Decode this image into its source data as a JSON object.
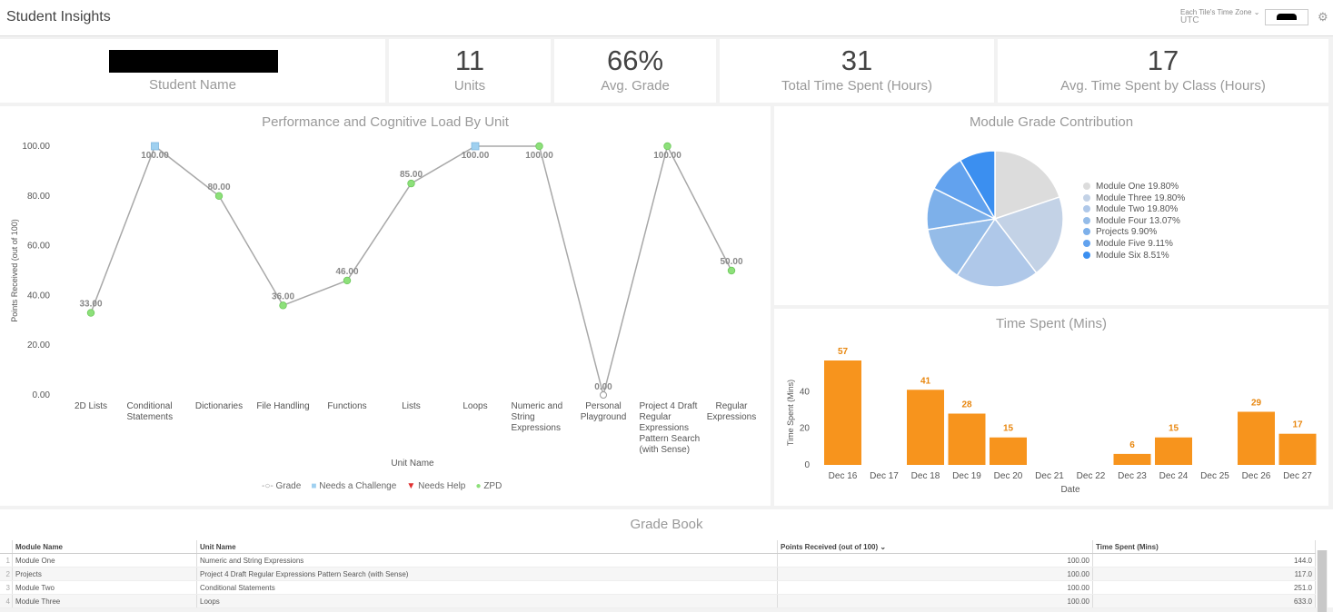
{
  "app": {
    "title": "Student Insights",
    "tz_label": "Each Tile's Time Zone",
    "tz_value": "UTC"
  },
  "icons": {
    "settings": "gear-icon",
    "dropdown": "chevron-down-icon",
    "sort": "sort-down-icon"
  },
  "kpis": {
    "student": {
      "label": "Student Name"
    },
    "units": {
      "value": "11",
      "label": "Units"
    },
    "avg_grade": {
      "value": "66%",
      "label": "Avg. Grade"
    },
    "total_time": {
      "value": "31",
      "label": "Total Time Spent (Hours)"
    },
    "avg_time_class": {
      "value": "17",
      "label": "Avg. Time Spent by Class (Hours)"
    }
  },
  "performance": {
    "title": "Performance and Cognitive Load By Unit",
    "legend": {
      "grade": "Grade",
      "challenge": "Needs a Challenge",
      "help": "Needs Help",
      "zpd": "ZPD"
    }
  },
  "module_grade": {
    "title": "Module Grade Contribution"
  },
  "time_spent": {
    "title": "Time Spent (Mins)"
  },
  "gradebook": {
    "title": "Grade Book",
    "columns": [
      "Module Name",
      "Unit Name",
      "Points Received (out of 100)",
      "Time Spent (Mins)"
    ],
    "rows": [
      {
        "n": "1",
        "module": "Module One",
        "unit": "Numeric and String Expressions",
        "points": "100.00",
        "time": "144.0"
      },
      {
        "n": "2",
        "module": "Projects",
        "unit": "Project 4 Draft Regular Expressions Pattern Search (with Sense)",
        "points": "100.00",
        "time": "117.0"
      },
      {
        "n": "3",
        "module": "Module Two",
        "unit": "Conditional Statements",
        "points": "100.00",
        "time": "251.0"
      },
      {
        "n": "4",
        "module": "Module Three",
        "unit": "Loops",
        "points": "100.00",
        "time": "633.0"
      }
    ]
  },
  "chart_data": [
    {
      "type": "line",
      "title": "Performance and Cognitive Load By Unit",
      "xlabel": "Unit Name",
      "ylabel": "Points Received (out of 100)",
      "ylim": [
        0,
        100
      ],
      "yticks": [
        "0.00",
        "20.00",
        "40.00",
        "60.00",
        "80.00",
        "100.00"
      ],
      "categories": [
        [
          "2D Lists"
        ],
        [
          "Conditional",
          "Statements"
        ],
        [
          "Dictionaries"
        ],
        [
          "File Handling"
        ],
        [
          "Functions"
        ],
        [
          "Lists"
        ],
        [
          "Loops"
        ],
        [
          "Numeric and",
          "String",
          "Expressions"
        ],
        [
          "Personal",
          "Playground"
        ],
        [
          "Project 4 Draft",
          "Regular",
          "Expressions",
          "Pattern Search",
          "(with Sense)"
        ],
        [
          "Regular",
          "Expressions"
        ]
      ],
      "values": [
        33,
        100,
        80,
        36,
        46,
        85,
        100,
        100,
        0,
        100,
        50
      ],
      "labels": [
        "33.00",
        "100.00",
        "80.00",
        "36.00",
        "46.00",
        "85.00",
        "100.00",
        "100.00",
        "0.00",
        "100.00",
        "50.00"
      ],
      "marker": [
        "zpd",
        "challenge",
        "zpd",
        "zpd",
        "zpd",
        "zpd",
        "challenge",
        "zpd",
        "grade",
        "zpd",
        "zpd"
      ],
      "series": [
        {
          "name": "Grade"
        },
        {
          "name": "Needs a Challenge"
        },
        {
          "name": "Needs Help"
        },
        {
          "name": "ZPD"
        }
      ],
      "colors": {
        "line": "#a8a8a8",
        "zpd": "#8de07a",
        "challenge": "#9fd0f0",
        "help": "#e03030",
        "grade": "#ffffff"
      },
      "grid": false,
      "legend_position": "bottom"
    },
    {
      "type": "pie",
      "title": "Module Grade Contribution",
      "slices": [
        {
          "name": "Module One",
          "value": 19.8,
          "label": "Module One 19.80%",
          "color": "#dcdcdc"
        },
        {
          "name": "Module Three",
          "value": 19.8,
          "label": "Module Three 19.80%",
          "color": "#c3d2e6"
        },
        {
          "name": "Module Two",
          "value": 19.8,
          "label": "Module Two 19.80%",
          "color": "#afc8e9"
        },
        {
          "name": "Module Four",
          "value": 13.07,
          "label": "Module Four 13.07%",
          "color": "#95bce8"
        },
        {
          "name": "Projects",
          "value": 9.9,
          "label": "Projects 9.90%",
          "color": "#7db0ea"
        },
        {
          "name": "Module Five",
          "value": 9.11,
          "label": "Module Five 9.11%",
          "color": "#62a2ee"
        },
        {
          "name": "Module Six",
          "value": 8.51,
          "label": "Module Six 8.51%",
          "color": "#3b8ff0"
        }
      ],
      "legend_position": "right"
    },
    {
      "type": "bar",
      "title": "Time Spent (Mins)",
      "xlabel": "Date",
      "ylabel": "Time Spent (Mins)",
      "ylim": [
        0,
        57
      ],
      "yticks": [
        "0",
        "20",
        "40"
      ],
      "categories": [
        "Dec 16",
        "Dec 17",
        "Dec 18",
        "Dec 19",
        "Dec 20",
        "Dec 21",
        "Dec 22",
        "Dec 23",
        "Dec 24",
        "Dec 25",
        "Dec 26",
        "Dec 27"
      ],
      "values": [
        57,
        0,
        41,
        28,
        15,
        0,
        0,
        6,
        15,
        0,
        29,
        17
      ],
      "color": "#f7941d",
      "grid": false
    }
  ]
}
